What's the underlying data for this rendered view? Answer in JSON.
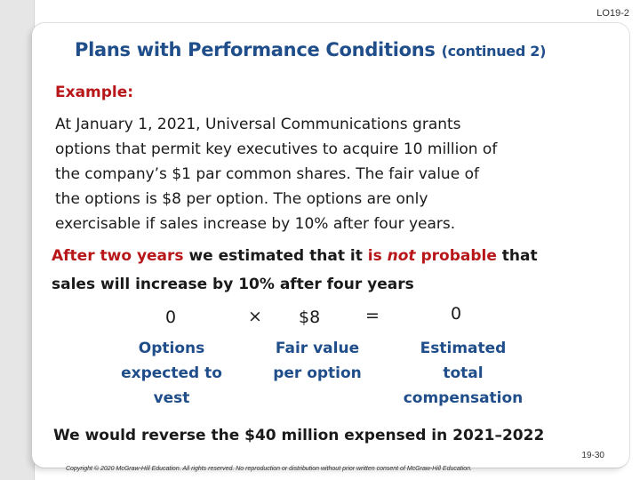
{
  "header": {
    "page_code": "LO19-2"
  },
  "title": {
    "main": "Plans with Performance Conditions",
    "suffix": "(continued 2)"
  },
  "example": {
    "label": "Example:",
    "lines": [
      "At January 1, 2021, Universal Communications grants",
      "options that permit key executives to acquire 10 million of",
      "the company’s $1 par common shares. The fair value of",
      "the options is $8 per option.  The options are only",
      "exercisable if sales increase by 10% after four years."
    ]
  },
  "emphasis": {
    "line1": {
      "part1": "After two years",
      "part2": " we estimated that it ",
      "part3": "is ",
      "part4": "not",
      "part5": " probable",
      "part6": " that"
    },
    "line2": "sales will increase by 10% after four years"
  },
  "equation": {
    "options_value": "0",
    "times": "×",
    "fair_value": "$8",
    "equals": "=",
    "result": "0",
    "labels": {
      "options": [
        "Options",
        "expected to",
        "vest"
      ],
      "fair_value": [
        "Fair value",
        "per option"
      ],
      "total": [
        "Estimated",
        "total",
        "compensation"
      ]
    }
  },
  "conclusion": "We would reverse the $40 million expensed in 2021–2022",
  "footer": {
    "page_number": "19-30",
    "copyright": "Copyright © 2020 McGraw-Hill Education. All rights reserved. No reproduction or distribution without prior written consent of McGraw-Hill Education."
  },
  "colors": {
    "title": "#1f4e8a",
    "accent_red": "#b8171a",
    "label_blue": "#1f4e8a"
  }
}
